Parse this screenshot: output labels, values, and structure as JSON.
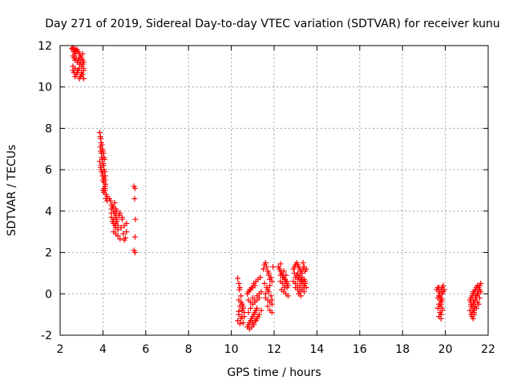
{
  "chart_data": {
    "type": "scatter",
    "title": "Day 271 of 2019, Sidereal Day-to-day VTEC variation (SDTVAR) for receiver kunu",
    "xlabel": "GPS time / hours",
    "ylabel": "SDTVAR / TECUs",
    "xlim": [
      2,
      22
    ],
    "ylim": [
      -2,
      12
    ],
    "xticks": [
      2,
      4,
      6,
      8,
      10,
      12,
      14,
      16,
      18,
      20,
      22
    ],
    "yticks": [
      -2,
      0,
      2,
      4,
      6,
      8,
      10,
      12
    ],
    "xtick_labels": [
      "2",
      "4",
      "6",
      "8",
      "10",
      "12",
      "14",
      "16",
      "18",
      "20",
      "22"
    ],
    "ytick_labels": [
      "-2",
      "0",
      "2",
      "4",
      "6",
      "8",
      "10",
      "12"
    ],
    "grid": true,
    "marker": "+",
    "color": "#ff0000",
    "series": [
      {
        "name": "SDTVAR",
        "x": [
          2.55,
          2.6,
          2.62,
          2.65,
          2.7,
          2.75,
          2.8,
          2.85,
          2.9,
          2.95,
          3.0,
          3.05,
          3.1,
          2.6,
          2.65,
          2.7,
          2.75,
          2.8,
          2.85,
          2.9,
          2.95,
          3.0,
          3.05,
          3.1,
          2.6,
          2.7,
          2.8,
          2.9,
          3.0,
          3.1,
          2.65,
          2.75,
          2.85,
          2.95,
          3.05,
          2.6,
          2.7,
          2.8,
          2.9,
          3.0,
          3.1,
          2.7,
          2.9,
          3.05,
          3.85,
          3.88,
          3.9,
          3.92,
          3.95,
          3.97,
          4.0,
          4.02,
          4.05,
          4.07,
          3.88,
          3.9,
          3.93,
          3.95,
          3.98,
          4.0,
          4.03,
          4.05,
          4.08,
          4.1,
          3.9,
          3.95,
          4.0,
          4.05,
          4.1,
          4.12,
          3.85,
          3.92,
          3.98,
          4.04,
          4.1,
          4.0,
          4.05,
          4.1,
          4.15,
          4.2,
          3.9,
          4.05,
          4.15,
          4.0,
          4.1,
          4.2,
          4.3,
          4.35,
          4.4,
          4.45,
          4.5,
          4.55,
          4.6,
          4.65,
          4.4,
          4.45,
          4.5,
          4.55,
          4.6,
          4.65,
          4.7,
          4.4,
          4.5,
          4.6,
          4.7,
          4.5,
          4.6,
          4.7,
          4.4,
          4.6,
          4.55,
          4.65,
          4.75,
          4.5,
          4.6,
          4.8,
          4.9,
          5.0,
          5.1,
          4.85,
          4.95,
          5.05,
          4.8,
          5.0,
          4.9,
          5.1,
          5.45,
          5.5,
          5.48,
          5.52,
          5.5,
          5.45,
          5.5,
          10.3,
          10.35,
          10.4,
          10.45,
          10.5,
          10.55,
          10.6,
          10.35,
          10.45,
          10.55,
          10.4,
          10.5,
          10.6,
          10.35,
          10.45,
          10.55,
          10.3,
          10.4,
          10.5,
          10.35,
          10.5,
          10.38,
          10.75,
          10.8,
          10.85,
          10.9,
          10.95,
          11.0,
          11.05,
          11.1,
          11.15,
          11.2,
          10.8,
          10.9,
          11.0,
          11.1,
          11.2,
          11.3,
          10.75,
          10.85,
          10.95,
          11.05,
          11.15,
          11.25,
          11.35,
          10.8,
          10.9,
          11.0,
          11.1,
          11.2,
          11.3,
          11.4,
          11.0,
          11.1,
          11.2,
          11.3,
          11.4,
          10.85,
          10.95,
          11.05,
          11.15,
          11.25,
          10.8,
          10.9,
          11.0,
          11.1,
          11.5,
          11.55,
          11.6,
          11.65,
          11.7,
          11.75,
          11.8,
          11.55,
          11.65,
          11.75,
          11.85,
          11.6,
          11.7,
          11.8,
          11.9,
          11.6,
          11.7,
          11.8,
          11.9,
          11.7,
          11.8,
          11.9,
          11.75,
          11.85,
          11.95,
          11.8,
          11.9,
          12.2,
          12.25,
          12.3,
          12.35,
          12.4,
          12.45,
          12.5,
          12.55,
          12.6,
          12.65,
          12.3,
          12.4,
          12.5,
          12.6,
          12.35,
          12.45,
          12.55,
          12.65,
          12.3,
          12.4,
          12.5,
          12.6,
          12.35,
          12.45,
          12.55,
          12.3,
          12.5,
          12.9,
          12.95,
          13.0,
          13.05,
          13.1,
          13.15,
          13.2,
          13.25,
          13.3,
          13.35,
          13.4,
          13.45,
          13.5,
          12.95,
          13.05,
          13.15,
          13.25,
          13.35,
          13.45,
          13.0,
          13.1,
          13.2,
          13.3,
          13.4,
          13.5,
          12.9,
          13.0,
          13.1,
          13.2,
          13.3,
          13.4,
          13.0,
          13.1,
          13.2,
          13.3,
          13.4,
          13.1,
          13.2,
          13.3,
          13.4,
          13.45,
          13.2,
          13.3,
          13.35,
          13.15,
          13.25,
          19.6,
          19.65,
          19.7,
          19.75,
          19.8,
          19.85,
          19.9,
          19.95,
          19.65,
          19.7,
          19.75,
          19.8,
          19.85,
          19.9,
          19.7,
          19.75,
          19.8,
          19.85,
          19.75,
          19.8,
          19.85,
          19.7,
          19.8,
          19.75,
          19.7,
          19.65,
          19.75,
          19.85,
          19.8,
          21.15,
          21.2,
          21.25,
          21.3,
          21.35,
          21.4,
          21.45,
          21.5,
          21.55,
          21.6,
          21.65,
          21.2,
          21.3,
          21.4,
          21.5,
          21.6,
          21.15,
          21.25,
          21.35,
          21.45,
          21.55,
          21.65,
          21.2,
          21.3,
          21.4,
          21.5,
          21.6,
          21.25,
          21.35,
          21.45,
          21.55,
          21.3,
          21.4,
          21.5,
          21.2,
          21.3,
          21.4,
          21.45,
          21.35,
          21.25,
          21.3,
          21.2,
          21.35
        ],
        "y": [
          11.85,
          11.9,
          11.8,
          11.7,
          11.85,
          11.75,
          11.8,
          11.7,
          11.6,
          11.5,
          11.4,
          11.3,
          11.2,
          11.5,
          11.4,
          11.3,
          11.4,
          11.2,
          11.3,
          11.1,
          11.2,
          11.0,
          11.1,
          10.9,
          11.0,
          10.9,
          10.8,
          10.9,
          10.7,
          10.8,
          10.7,
          10.6,
          10.8,
          10.5,
          10.6,
          10.8,
          10.5,
          10.7,
          10.4,
          10.6,
          10.4,
          11.6,
          11.4,
          11.6,
          7.8,
          7.6,
          7.5,
          7.3,
          7.2,
          7.0,
          6.9,
          6.8,
          6.6,
          6.5,
          7.1,
          6.9,
          6.8,
          6.6,
          6.5,
          6.3,
          6.2,
          6.0,
          5.9,
          5.7,
          6.1,
          5.9,
          5.8,
          5.6,
          5.5,
          5.3,
          6.4,
          6.0,
          5.7,
          5.4,
          5.2,
          5.0,
          4.9,
          5.1,
          4.8,
          4.7,
          6.2,
          5.1,
          4.6,
          5.5,
          5.0,
          4.5,
          4.6,
          4.5,
          4.3,
          4.2,
          4.0,
          3.9,
          3.8,
          3.6,
          3.7,
          3.5,
          3.4,
          3.3,
          3.2,
          3.5,
          3.1,
          3.9,
          3.6,
          3.4,
          3.3,
          3.0,
          2.9,
          2.8,
          4.1,
          3.7,
          4.4,
          4.0,
          3.8,
          4.2,
          4.1,
          3.9,
          3.6,
          3.3,
          3.0,
          3.2,
          2.9,
          2.7,
          2.65,
          2.6,
          3.7,
          3.4,
          5.2,
          5.1,
          4.6,
          3.6,
          2.75,
          2.1,
          2.0,
          0.75,
          0.5,
          0.3,
          -0.1,
          -0.5,
          -0.7,
          -0.9,
          -1.0,
          -1.2,
          -1.4,
          -0.6,
          -0.8,
          -1.1,
          -0.3,
          -0.4,
          -0.6,
          -1.3,
          -1.45,
          -1.1,
          -0.85,
          -0.5,
          0.2,
          -1.6,
          -1.5,
          -1.4,
          -1.3,
          -1.2,
          -1.1,
          -1.0,
          -0.9,
          -0.8,
          -0.7,
          -0.3,
          -0.4,
          -0.2,
          -0.4,
          -0.3,
          -0.2,
          0.0,
          0.2,
          0.3,
          0.5,
          0.6,
          0.7,
          0.8,
          -0.9,
          -0.7,
          -0.5,
          -0.3,
          -0.1,
          0.0,
          0.1,
          -1.4,
          -1.3,
          -1.2,
          -1.0,
          -0.8,
          -1.7,
          -1.6,
          -1.5,
          -1.3,
          -1.1,
          0.1,
          0.2,
          0.3,
          0.4,
          1.2,
          1.4,
          1.5,
          1.3,
          1.1,
          0.9,
          0.7,
          0.5,
          0.3,
          0.1,
          -0.1,
          -0.2,
          -0.3,
          -0.4,
          -0.5,
          0.0,
          0.2,
          0.4,
          0.6,
          -0.6,
          -0.8,
          -0.9,
          1.0,
          0.8,
          1.3,
          0.7,
          -0.3,
          1.3,
          1.2,
          1.1,
          1.0,
          0.9,
          0.8,
          0.7,
          0.6,
          0.5,
          0.4,
          0.6,
          0.5,
          0.4,
          0.3,
          0.2,
          0.1,
          0.0,
          -0.1,
          0.9,
          0.8,
          0.7,
          0.6,
          1.0,
          1.1,
          0.9,
          1.45,
          0.3,
          1.2,
          1.3,
          1.4,
          1.5,
          1.4,
          1.3,
          1.2,
          1.1,
          1.0,
          1.2,
          1.3,
          1.1,
          1.2,
          1.0,
          0.9,
          0.8,
          0.7,
          0.6,
          0.5,
          0.8,
          0.7,
          0.6,
          0.5,
          0.4,
          0.3,
          0.6,
          0.5,
          0.4,
          0.3,
          0.2,
          0.1,
          0.3,
          0.2,
          0.1,
          0.2,
          0.3,
          1.0,
          0.9,
          0.8,
          0.7,
          0.6,
          0.4,
          0.6,
          1.5,
          0.0,
          -0.1,
          0.2,
          0.3,
          0.1,
          0.0,
          0.2,
          0.3,
          0.4,
          0.2,
          -0.2,
          -0.1,
          -0.3,
          -0.2,
          0.0,
          0.1,
          -0.5,
          -0.6,
          -0.4,
          -0.3,
          -0.9,
          -1.0,
          -0.8,
          -1.1,
          -1.2,
          -0.1,
          0.3,
          -0.7,
          -0.9,
          -0.7,
          -0.5,
          -0.3,
          -0.2,
          -0.1,
          0.0,
          0.1,
          0.2,
          0.3,
          0.4,
          0.3,
          0.4,
          0.5,
          -0.5,
          -0.3,
          -0.1,
          0.1,
          0.2,
          -0.8,
          -0.6,
          -0.4,
          -0.2,
          0.0,
          0.1,
          -1.0,
          -0.8,
          -0.6,
          -0.4,
          -0.2,
          -1.1,
          -0.9,
          -0.7,
          -0.5,
          0.1,
          0.2,
          0.0,
          -0.6,
          -0.5,
          -0.3,
          -0.1,
          -0.7,
          -0.9,
          -1.2,
          -0.4,
          -1.0
        ]
      }
    ]
  }
}
